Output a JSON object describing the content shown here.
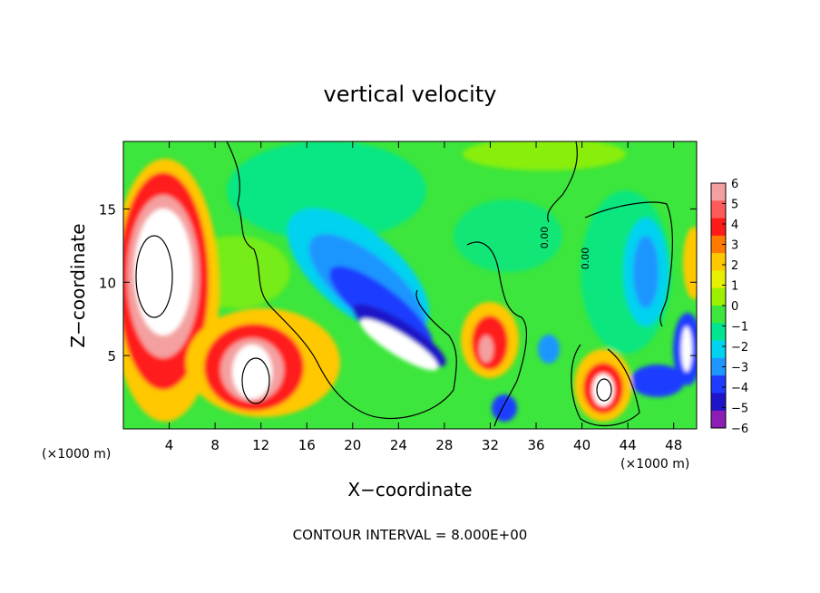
{
  "chart_data": {
    "type": "heatmap",
    "title": "vertical velocity",
    "xlabel": "X−coordinate",
    "ylabel": "Z−coordinate",
    "x_units_label": "(×1000 m)",
    "x_units_label_right": "(×1000 m)",
    "footer": "CONTOUR INTERVAL = 8.000E+00",
    "xlim": [
      0,
      50
    ],
    "ylim": [
      0,
      19.6
    ],
    "x_ticks": [
      4,
      8,
      12,
      16,
      20,
      24,
      28,
      32,
      36,
      40,
      44,
      48
    ],
    "x_tick_labels": [
      "4",
      "8",
      "12",
      "16",
      "20",
      "24",
      "28",
      "32",
      "36",
      "40",
      "44",
      "48"
    ],
    "y_ticks": [
      5,
      10,
      15
    ],
    "y_tick_labels": [
      "5",
      "10",
      "15"
    ],
    "colorbar": {
      "range": [
        -6,
        6
      ],
      "labels": [
        "6",
        "5",
        "4",
        "3",
        "2",
        "1",
        "0",
        "−1",
        "−2",
        "−3",
        "−4",
        "−5",
        "−6"
      ],
      "colors": [
        "#f4a0a0",
        "#ff5a5a",
        "#ff1a1a",
        "#ff7a00",
        "#ffc800",
        "#e6f000",
        "#9cf000",
        "#3ce63c",
        "#00e690",
        "#00d2f0",
        "#1e96ff",
        "#1e3cff",
        "#1e14c8",
        "#8c1eb4"
      ]
    },
    "contour_labels": [
      "0.00",
      "0.00"
    ],
    "features": [
      {
        "sign": "positive",
        "x": 4.5,
        "z": 11,
        "peak": 6,
        "sx": 2.2,
        "sz": 4.2
      },
      {
        "sign": "positive",
        "x": 11.5,
        "z": 4.5,
        "peak": 6,
        "sx": 2.6,
        "sz": 2.3
      },
      {
        "sign": "positive",
        "x": 31,
        "z": 5.5,
        "peak": 5,
        "sx": 0.9,
        "sz": 1.6
      },
      {
        "sign": "positive",
        "x": 41.8,
        "z": 3,
        "peak": 5.5,
        "sx": 1.4,
        "sz": 1.8
      },
      {
        "sign": "negative",
        "x": 21,
        "z": 10,
        "peak": -3.5,
        "sx": 3.5,
        "sz": 4
      },
      {
        "sign": "negative",
        "x": 24,
        "z": 5.8,
        "peak": -6,
        "sx": 3.2,
        "sz": 1.6
      },
      {
        "sign": "negative",
        "x": 44.5,
        "z": 10.5,
        "peak": -3,
        "sx": 1.5,
        "sz": 3
      },
      {
        "sign": "negative",
        "x": 48.8,
        "z": 6,
        "peak": -5,
        "sx": 1,
        "sz": 2.5
      }
    ]
  }
}
